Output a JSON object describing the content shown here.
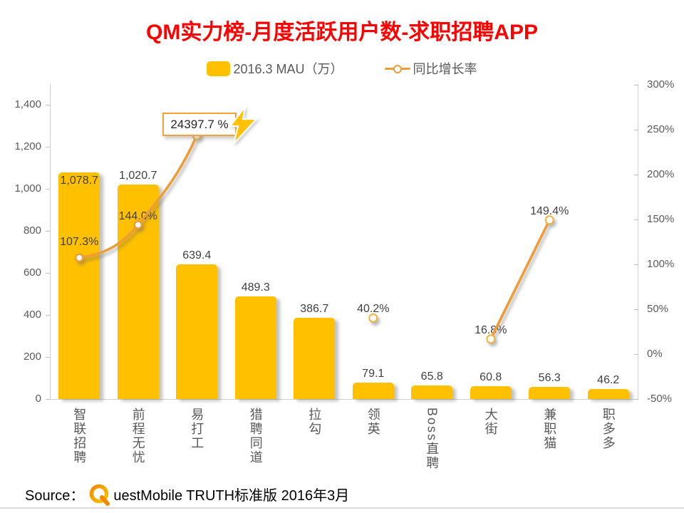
{
  "title": "QM实力榜-月度活跃用户数-求职招聘APP",
  "legend": [
    {
      "label": "2016.3 MAU（万）",
      "swatch": "bar-swatch",
      "color": "#FFC000"
    },
    {
      "label": "同比增长率",
      "swatch": "line-swatch",
      "color": "#ED9C38"
    }
  ],
  "chart_data": {
    "type": "bar",
    "subtype": "combo-bar-line",
    "categories": [
      "智联招聘",
      "前程无忧",
      "易打工",
      "猎聘同道",
      "拉勾",
      "领英",
      "Boss直聘",
      "大街",
      "兼职猫",
      "职多多"
    ],
    "series": [
      {
        "name": "2016.3 MAU（万）",
        "type": "bar",
        "axis": "left",
        "values": [
          1078.7,
          1020.7,
          639.4,
          489.3,
          386.7,
          79.1,
          65.8,
          60.8,
          56.3,
          46.2
        ],
        "labels": [
          "1,078.7",
          "1,020.7",
          "639.4",
          "489.3",
          "386.7",
          "79.1",
          "65.8",
          "60.8",
          "56.3",
          "46.2"
        ]
      },
      {
        "name": "同比增长率",
        "type": "line",
        "axis": "right",
        "values": [
          107.3,
          144.0,
          24397.7,
          null,
          null,
          40.2,
          null,
          16.8,
          149.4,
          null
        ],
        "labels": [
          "107.3%",
          "144.0%",
          "24397.7 %",
          null,
          null,
          "40.2%",
          null,
          "16.8%",
          "149.4%",
          null
        ]
      }
    ],
    "left_axis": {
      "ticks": [
        "0",
        "200",
        "400",
        "600",
        "800",
        "1,000",
        "1,200",
        "1,400"
      ],
      "min": 0,
      "max": 1400,
      "step": 200
    },
    "right_axis": {
      "ticks": [
        "-50%",
        "0%",
        "50%",
        "100%",
        "150%",
        "200%",
        "250%",
        "300%"
      ],
      "min": -50,
      "max": 300,
      "step": 50
    },
    "grid": "off",
    "legend_position": "top",
    "annotation": {
      "category": "易打工",
      "text": "24397.7 %",
      "icon": "lightning-icon"
    }
  },
  "colors": {
    "bar": "#FFC000",
    "line": "#ED9C38",
    "title": "#FF0000",
    "axis_text": "#595959",
    "data_label": "#3F3F3F",
    "annotation_border": "#F1A23B",
    "bolt": "#FFC107"
  },
  "source": {
    "prefix": "Source：",
    "logo_letter": "Q",
    "text": "uestMobile TRUTH标准版 2016年3月"
  }
}
